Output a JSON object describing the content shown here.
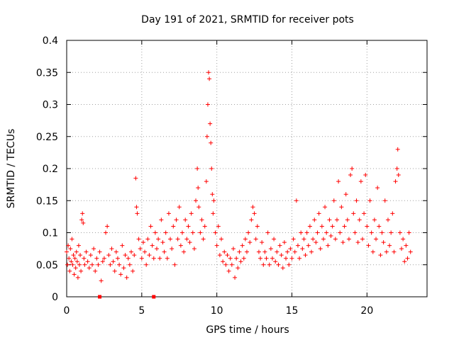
{
  "chart_data": {
    "type": "scatter",
    "title": "Day 191 of 2021, SRMTID for receiver pots",
    "xlabel": "GPS time / hours",
    "ylabel": "SRMTID / TECUs",
    "xlim": [
      0,
      24
    ],
    "ylim": [
      0,
      0.4
    ],
    "x_ticks": [
      0,
      5,
      10,
      15,
      20
    ],
    "x_tick_labels": [
      "0",
      "5",
      "10",
      "15",
      "20"
    ],
    "y_ticks": [
      0,
      0.05,
      0.1,
      0.15,
      0.2,
      0.25,
      0.3,
      0.35,
      0.4
    ],
    "y_tick_labels": [
      "0",
      "0.05",
      "0.1",
      "0.15",
      "0.2",
      "0.25",
      "0.3",
      "0.35",
      "0.4"
    ],
    "grid": true,
    "marker": "plus",
    "series_color": "#ff0000",
    "baseline_x": [
      2.2,
      5.8
    ],
    "baseline_y": 0,
    "points": [
      [
        0.0,
        0.07
      ],
      [
        0.05,
        0.05
      ],
      [
        0.1,
        0.08
      ],
      [
        0.15,
        0.06
      ],
      [
        0.2,
        0.04
      ],
      [
        0.25,
        0.075
      ],
      [
        0.3,
        0.055
      ],
      [
        0.35,
        0.09
      ],
      [
        0.4,
        0.05
      ],
      [
        0.45,
        0.065
      ],
      [
        0.5,
        0.035
      ],
      [
        0.55,
        0.06
      ],
      [
        0.6,
        0.045
      ],
      [
        0.65,
        0.07
      ],
      [
        0.7,
        0.055
      ],
      [
        0.75,
        0.03
      ],
      [
        0.8,
        0.08
      ],
      [
        0.85,
        0.05
      ],
      [
        0.9,
        0.065
      ],
      [
        0.95,
        0.04
      ],
      [
        1.0,
        0.12
      ],
      [
        1.05,
        0.13
      ],
      [
        1.1,
        0.115
      ],
      [
        1.15,
        0.06
      ],
      [
        1.2,
        0.05
      ],
      [
        1.3,
        0.07
      ],
      [
        1.4,
        0.055
      ],
      [
        1.5,
        0.045
      ],
      [
        1.6,
        0.065
      ],
      [
        1.7,
        0.05
      ],
      [
        1.8,
        0.075
      ],
      [
        1.9,
        0.04
      ],
      [
        2.0,
        0.06
      ],
      [
        2.1,
        0.05
      ],
      [
        2.2,
        0.07
      ],
      [
        2.3,
        0.025
      ],
      [
        2.4,
        0.055
      ],
      [
        2.5,
        0.06
      ],
      [
        2.6,
        0.1
      ],
      [
        2.7,
        0.11
      ],
      [
        2.8,
        0.065
      ],
      [
        2.9,
        0.05
      ],
      [
        3.0,
        0.075
      ],
      [
        3.1,
        0.055
      ],
      [
        3.2,
        0.04
      ],
      [
        3.3,
        0.07
      ],
      [
        3.4,
        0.06
      ],
      [
        3.5,
        0.05
      ],
      [
        3.6,
        0.035
      ],
      [
        3.7,
        0.08
      ],
      [
        3.8,
        0.045
      ],
      [
        3.9,
        0.065
      ],
      [
        4.0,
        0.03
      ],
      [
        4.1,
        0.06
      ],
      [
        4.2,
        0.05
      ],
      [
        4.3,
        0.07
      ],
      [
        4.4,
        0.04
      ],
      [
        4.5,
        0.065
      ],
      [
        4.6,
        0.185
      ],
      [
        4.65,
        0.14
      ],
      [
        4.7,
        0.13
      ],
      [
        4.8,
        0.09
      ],
      [
        4.9,
        0.075
      ],
      [
        5.0,
        0.06
      ],
      [
        5.1,
        0.085
      ],
      [
        5.2,
        0.07
      ],
      [
        5.3,
        0.05
      ],
      [
        5.4,
        0.09
      ],
      [
        5.5,
        0.065
      ],
      [
        5.6,
        0.11
      ],
      [
        5.7,
        0.08
      ],
      [
        5.8,
        0.06
      ],
      [
        5.9,
        0.1
      ],
      [
        6.0,
        0.075
      ],
      [
        6.1,
        0.09
      ],
      [
        6.2,
        0.06
      ],
      [
        6.3,
        0.12
      ],
      [
        6.4,
        0.085
      ],
      [
        6.5,
        0.07
      ],
      [
        6.6,
        0.1
      ],
      [
        6.7,
        0.06
      ],
      [
        6.8,
        0.13
      ],
      [
        6.9,
        0.09
      ],
      [
        7.0,
        0.075
      ],
      [
        7.1,
        0.11
      ],
      [
        7.2,
        0.05
      ],
      [
        7.3,
        0.12
      ],
      [
        7.4,
        0.09
      ],
      [
        7.5,
        0.14
      ],
      [
        7.6,
        0.08
      ],
      [
        7.7,
        0.1
      ],
      [
        7.8,
        0.07
      ],
      [
        7.9,
        0.12
      ],
      [
        8.0,
        0.09
      ],
      [
        8.1,
        0.11
      ],
      [
        8.2,
        0.085
      ],
      [
        8.3,
        0.13
      ],
      [
        8.4,
        0.1
      ],
      [
        8.5,
        0.075
      ],
      [
        8.6,
        0.15
      ],
      [
        8.7,
        0.2
      ],
      [
        8.75,
        0.17
      ],
      [
        8.8,
        0.14
      ],
      [
        8.9,
        0.1
      ],
      [
        9.0,
        0.12
      ],
      [
        9.1,
        0.09
      ],
      [
        9.2,
        0.11
      ],
      [
        9.3,
        0.18
      ],
      [
        9.35,
        0.25
      ],
      [
        9.4,
        0.3
      ],
      [
        9.45,
        0.35
      ],
      [
        9.5,
        0.34
      ],
      [
        9.55,
        0.27
      ],
      [
        9.6,
        0.24
      ],
      [
        9.65,
        0.2
      ],
      [
        9.7,
        0.16
      ],
      [
        9.75,
        0.13
      ],
      [
        9.8,
        0.15
      ],
      [
        9.9,
        0.1
      ],
      [
        10.0,
        0.08
      ],
      [
        10.1,
        0.11
      ],
      [
        10.2,
        0.065
      ],
      [
        10.3,
        0.09
      ],
      [
        10.4,
        0.055
      ],
      [
        10.5,
        0.07
      ],
      [
        10.6,
        0.05
      ],
      [
        10.7,
        0.065
      ],
      [
        10.8,
        0.04
      ],
      [
        10.9,
        0.06
      ],
      [
        11.0,
        0.05
      ],
      [
        11.1,
        0.075
      ],
      [
        11.2,
        0.03
      ],
      [
        11.3,
        0.06
      ],
      [
        11.4,
        0.045
      ],
      [
        11.5,
        0.07
      ],
      [
        11.6,
        0.055
      ],
      [
        11.7,
        0.08
      ],
      [
        11.8,
        0.06
      ],
      [
        11.9,
        0.09
      ],
      [
        12.0,
        0.07
      ],
      [
        12.1,
        0.1
      ],
      [
        12.2,
        0.085
      ],
      [
        12.3,
        0.12
      ],
      [
        12.4,
        0.14
      ],
      [
        12.5,
        0.13
      ],
      [
        12.6,
        0.09
      ],
      [
        12.7,
        0.11
      ],
      [
        12.8,
        0.07
      ],
      [
        12.9,
        0.06
      ],
      [
        13.0,
        0.085
      ],
      [
        13.1,
        0.05
      ],
      [
        13.2,
        0.07
      ],
      [
        13.3,
        0.06
      ],
      [
        13.4,
        0.1
      ],
      [
        13.5,
        0.05
      ],
      [
        13.6,
        0.075
      ],
      [
        13.7,
        0.06
      ],
      [
        13.8,
        0.09
      ],
      [
        13.9,
        0.055
      ],
      [
        14.0,
        0.07
      ],
      [
        14.1,
        0.05
      ],
      [
        14.2,
        0.08
      ],
      [
        14.3,
        0.065
      ],
      [
        14.4,
        0.045
      ],
      [
        14.5,
        0.085
      ],
      [
        14.6,
        0.06
      ],
      [
        14.7,
        0.07
      ],
      [
        14.8,
        0.05
      ],
      [
        14.9,
        0.075
      ],
      [
        15.0,
        0.06
      ],
      [
        15.1,
        0.09
      ],
      [
        15.2,
        0.07
      ],
      [
        15.3,
        0.15
      ],
      [
        15.4,
        0.08
      ],
      [
        15.5,
        0.06
      ],
      [
        15.6,
        0.1
      ],
      [
        15.7,
        0.075
      ],
      [
        15.8,
        0.09
      ],
      [
        15.9,
        0.065
      ],
      [
        16.0,
        0.1
      ],
      [
        16.1,
        0.08
      ],
      [
        16.2,
        0.11
      ],
      [
        16.3,
        0.07
      ],
      [
        16.4,
        0.09
      ],
      [
        16.5,
        0.12
      ],
      [
        16.6,
        0.085
      ],
      [
        16.7,
        0.1
      ],
      [
        16.8,
        0.13
      ],
      [
        16.9,
        0.075
      ],
      [
        17.0,
        0.11
      ],
      [
        17.1,
        0.09
      ],
      [
        17.2,
        0.14
      ],
      [
        17.3,
        0.1
      ],
      [
        17.4,
        0.08
      ],
      [
        17.5,
        0.12
      ],
      [
        17.6,
        0.095
      ],
      [
        17.7,
        0.11
      ],
      [
        17.8,
        0.15
      ],
      [
        17.9,
        0.09
      ],
      [
        18.0,
        0.12
      ],
      [
        18.1,
        0.18
      ],
      [
        18.2,
        0.1
      ],
      [
        18.3,
        0.14
      ],
      [
        18.4,
        0.085
      ],
      [
        18.5,
        0.11
      ],
      [
        18.6,
        0.16
      ],
      [
        18.7,
        0.12
      ],
      [
        18.8,
        0.09
      ],
      [
        18.9,
        0.19
      ],
      [
        19.0,
        0.2
      ],
      [
        19.1,
        0.13
      ],
      [
        19.2,
        0.1
      ],
      [
        19.3,
        0.15
      ],
      [
        19.4,
        0.085
      ],
      [
        19.5,
        0.12
      ],
      [
        19.6,
        0.18
      ],
      [
        19.7,
        0.09
      ],
      [
        19.8,
        0.13
      ],
      [
        19.9,
        0.19
      ],
      [
        20.0,
        0.11
      ],
      [
        20.1,
        0.08
      ],
      [
        20.2,
        0.15
      ],
      [
        20.3,
        0.1
      ],
      [
        20.4,
        0.07
      ],
      [
        20.5,
        0.12
      ],
      [
        20.6,
        0.09
      ],
      [
        20.7,
        0.17
      ],
      [
        20.8,
        0.11
      ],
      [
        20.9,
        0.065
      ],
      [
        21.0,
        0.1
      ],
      [
        21.1,
        0.085
      ],
      [
        21.2,
        0.15
      ],
      [
        21.3,
        0.07
      ],
      [
        21.4,
        0.12
      ],
      [
        21.5,
        0.08
      ],
      [
        21.6,
        0.1
      ],
      [
        21.7,
        0.13
      ],
      [
        21.8,
        0.07
      ],
      [
        21.9,
        0.18
      ],
      [
        22.0,
        0.2
      ],
      [
        22.05,
        0.23
      ],
      [
        22.1,
        0.19
      ],
      [
        22.2,
        0.1
      ],
      [
        22.3,
        0.075
      ],
      [
        22.4,
        0.09
      ],
      [
        22.5,
        0.055
      ],
      [
        22.6,
        0.08
      ],
      [
        22.7,
        0.06
      ],
      [
        22.8,
        0.1
      ],
      [
        22.9,
        0.07
      ]
    ]
  }
}
